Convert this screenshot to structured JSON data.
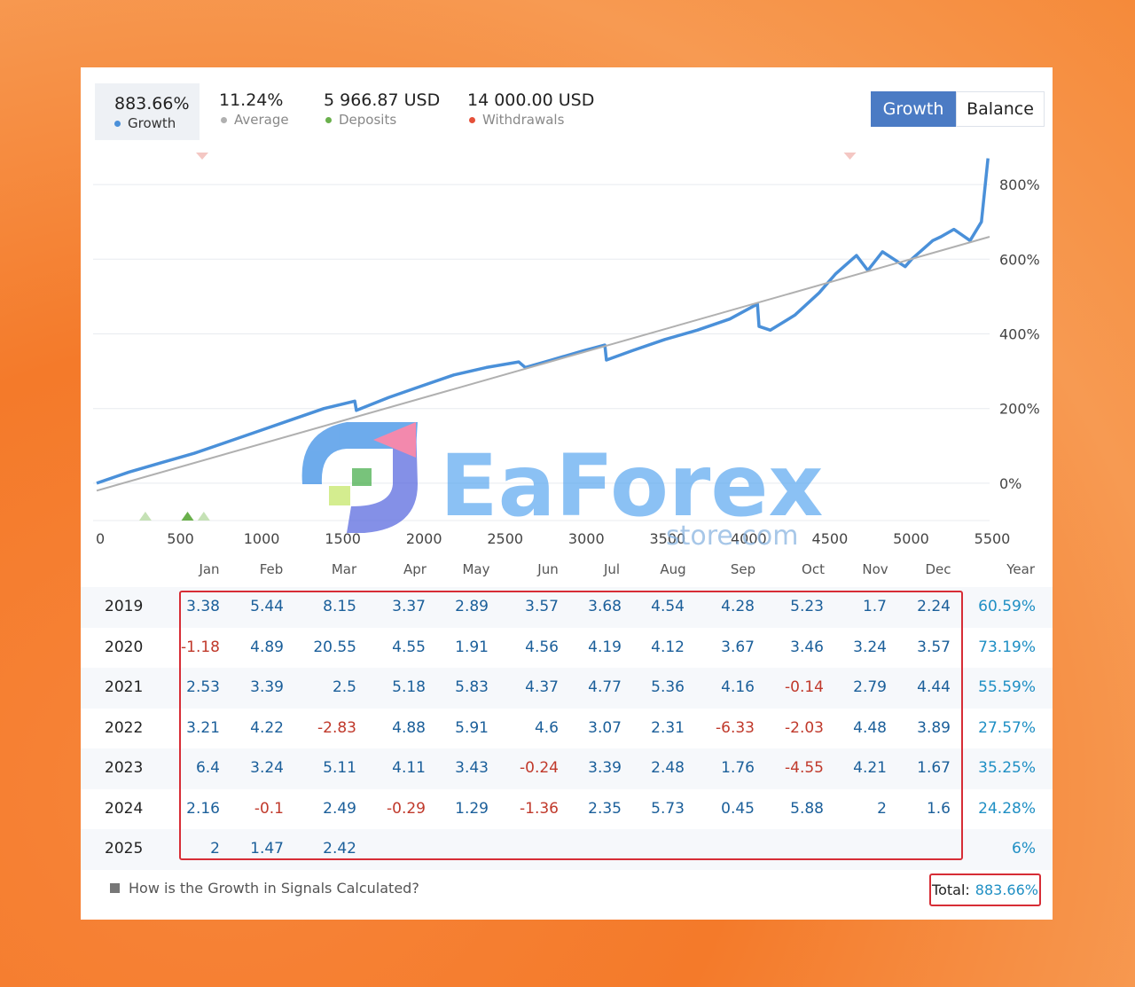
{
  "stats": {
    "growth": {
      "value": "883.66%",
      "label": "Growth",
      "color": "#4a90d9"
    },
    "average": {
      "value": "11.24%",
      "label": "Average",
      "color": "#b0b0b0"
    },
    "deposits": {
      "value": "5 966.87 USD",
      "label": "Deposits",
      "color": "#6ab04c"
    },
    "withdrawals": {
      "value": "14 000.00 USD",
      "label": "Withdrawals",
      "color": "#e55039"
    }
  },
  "toggle": {
    "growth": "Growth",
    "balance": "Balance",
    "active": "growth"
  },
  "chart_data": {
    "type": "line",
    "xlim": [
      0,
      5500
    ],
    "ylim": [
      -100,
      900
    ],
    "x_ticks": [
      "0",
      "500",
      "1000",
      "1500",
      "2000",
      "2500",
      "3000",
      "3500",
      "4000",
      "4500",
      "5000",
      "5500"
    ],
    "x_tick_values": [
      0,
      500,
      1000,
      1500,
      2000,
      2500,
      3000,
      3500,
      4000,
      4500,
      5000,
      5500
    ],
    "y_ticks": [
      "0%",
      "200%",
      "400%",
      "600%",
      "800%"
    ],
    "y_tick_values": [
      0,
      200,
      400,
      600,
      800
    ],
    "grid": true,
    "series": [
      {
        "color": "#4a90d9",
        "x": [
          0,
          200,
          400,
          600,
          800,
          1000,
          1200,
          1400,
          1590,
          1600,
          1800,
          2000,
          2200,
          2400,
          2600,
          2640,
          2800,
          3000,
          3130,
          3140,
          3300,
          3500,
          3700,
          3900,
          4070,
          4080,
          4150,
          4300,
          4450,
          4550,
          4680,
          4750,
          4840,
          4980,
          5020,
          5150,
          5200,
          5280,
          5380,
          5450,
          5490
        ],
        "y": [
          0,
          30,
          55,
          80,
          110,
          140,
          170,
          200,
          220,
          195,
          230,
          260,
          290,
          310,
          325,
          310,
          330,
          355,
          370,
          330,
          355,
          385,
          410,
          440,
          480,
          420,
          410,
          450,
          510,
          560,
          610,
          570,
          620,
          580,
          600,
          650,
          660,
          680,
          650,
          700,
          870
        ]
      },
      {
        "color": "#b0b0b0",
        "x": [
          0,
          5500
        ],
        "y": [
          -20,
          660
        ]
      }
    ],
    "markers": [
      {
        "type": "withdrawal",
        "x": 650,
        "color": "#f4c7c3"
      },
      {
        "type": "withdrawal",
        "x": 4640,
        "color": "#f4c7c3"
      },
      {
        "type": "deposit",
        "x": 300,
        "color": "#c5e1b5"
      },
      {
        "type": "deposit",
        "x": 560,
        "color": "#6ab04c"
      },
      {
        "type": "deposit",
        "x": 660,
        "color": "#c5e1b5"
      }
    ]
  },
  "table": {
    "months": [
      "Jan",
      "Feb",
      "Mar",
      "Apr",
      "May",
      "Jun",
      "Jul",
      "Aug",
      "Sep",
      "Oct",
      "Nov",
      "Dec"
    ],
    "year_header": "Year",
    "rows": [
      {
        "year": "2019",
        "values": [
          "3.38",
          "5.44",
          "8.15",
          "3.37",
          "2.89",
          "3.57",
          "3.68",
          "4.54",
          "4.28",
          "5.23",
          "1.7",
          "2.24"
        ],
        "total": "60.59%"
      },
      {
        "year": "2020",
        "values": [
          "-1.18",
          "4.89",
          "20.55",
          "4.55",
          "1.91",
          "4.56",
          "4.19",
          "4.12",
          "3.67",
          "3.46",
          "3.24",
          "3.57"
        ],
        "total": "73.19%"
      },
      {
        "year": "2021",
        "values": [
          "2.53",
          "3.39",
          "2.5",
          "5.18",
          "5.83",
          "4.37",
          "4.77",
          "5.36",
          "4.16",
          "-0.14",
          "2.79",
          "4.44"
        ],
        "total": "55.59%"
      },
      {
        "year": "2022",
        "values": [
          "3.21",
          "4.22",
          "-2.83",
          "4.88",
          "5.91",
          "4.6",
          "3.07",
          "2.31",
          "-6.33",
          "-2.03",
          "4.48",
          "3.89"
        ],
        "total": "27.57%"
      },
      {
        "year": "2023",
        "values": [
          "6.4",
          "3.24",
          "5.11",
          "4.11",
          "3.43",
          "-0.24",
          "3.39",
          "2.48",
          "1.76",
          "-4.55",
          "4.21",
          "1.67"
        ],
        "total": "35.25%"
      },
      {
        "year": "2024",
        "values": [
          "2.16",
          "-0.1",
          "2.49",
          "-0.29",
          "1.29",
          "-1.36",
          "2.35",
          "5.73",
          "0.45",
          "5.88",
          "2",
          "1.6"
        ],
        "total": "24.28%"
      },
      {
        "year": "2025",
        "values": [
          "2",
          "1.47",
          "2.42",
          "",
          "",
          "",
          "",
          "",
          "",
          "",
          "",
          ""
        ],
        "total": "6%"
      }
    ]
  },
  "footer": {
    "link": "How is the Growth in Signals Calculated?",
    "total_label": "Total:",
    "total_value": "883.66%"
  },
  "watermark": {
    "brand": "EaForex",
    "sub": "store.com"
  }
}
